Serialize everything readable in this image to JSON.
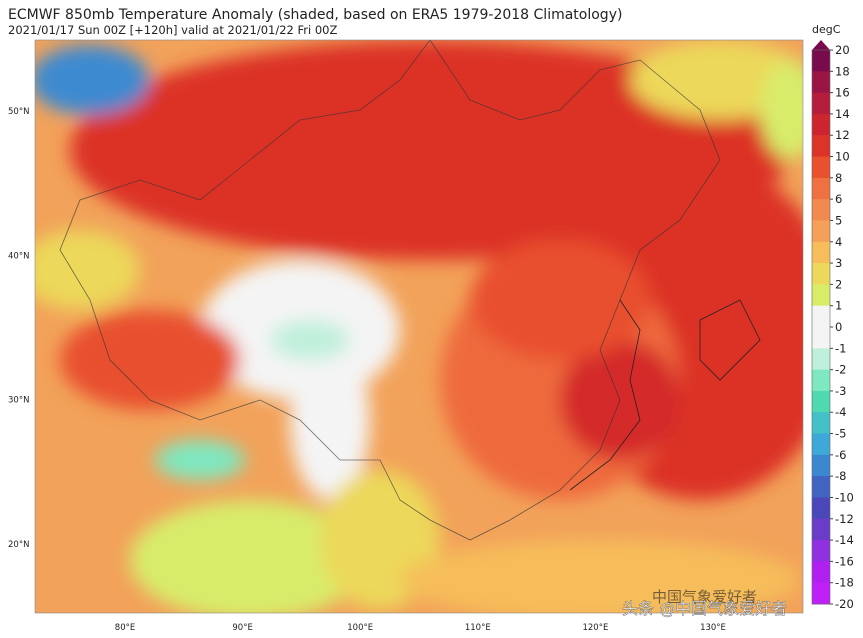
{
  "header": {
    "title": "ECMWF 850mb Temperature Anomaly (shaded, based on ERA5 1979-2018 Climatology)",
    "subtitle": "2021/01/17 Sun 00Z [+120h] valid at 2021/01/22 Fri 00Z"
  },
  "colorbar": {
    "unit": "degC",
    "labels": [
      "20",
      "18",
      "16",
      "14",
      "12",
      "10",
      "8",
      "6",
      "5",
      "4",
      "3",
      "2",
      "1",
      "0",
      "-1",
      "-2",
      "-3",
      "-4",
      "-5",
      "-6",
      "-8",
      "-10",
      "-12",
      "-14",
      "-16",
      "-18",
      "-20"
    ],
    "colors": [
      "#7a0a4e",
      "#9b1446",
      "#b51d3c",
      "#cc2530",
      "#dc3328",
      "#e8502e",
      "#ef7040",
      "#f28a50",
      "#f5a05a",
      "#f6bd5a",
      "#ecd85a",
      "#d8ec6a",
      "#f4f4f4",
      "#f4f4f4",
      "#bff0dc",
      "#7ee8c0",
      "#50d8b0",
      "#44c0c8",
      "#3ea8d8",
      "#3c88d0",
      "#4064c0",
      "#4a48b8",
      "#6a3cc8",
      "#9030e0",
      "#b020f0",
      "#c020f8"
    ]
  },
  "lat_labels": [
    "50°N",
    "40°N",
    "30°N",
    "20°N"
  ],
  "lon_labels": [
    "80°E",
    "90°E",
    "100°E",
    "110°E",
    "120°E",
    "130°E"
  ],
  "watermark": {
    "faded": "中国气象爱好者",
    "text": "头条 @中国气象爱好者"
  }
}
